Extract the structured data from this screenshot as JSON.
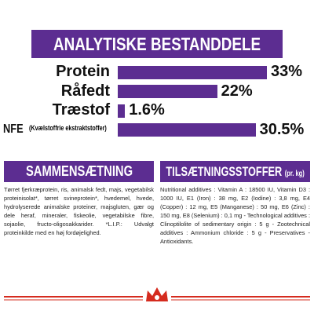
{
  "chart_data": {
    "type": "bar",
    "orientation": "horizontal",
    "title": "ANALYTISKE BESTANDDELE",
    "categories": [
      "Protein",
      "Råfedt",
      "Træstof",
      "NFE"
    ],
    "values": [
      33,
      22,
      1.6,
      30.5
    ],
    "value_labels": [
      "33%",
      "22%",
      "1.6%",
      "30.5%"
    ],
    "color": "#5c2d91"
  },
  "nfe_note": "(Kvælstoffrie ekstraktstoffer)",
  "composition": {
    "title": "SAMMENSÆTNING",
    "text": "Tørret fjerkræprotein, ris, animalsk fedt, majs, vegetabilsk proteinisolat*, tørret svineprotein*, hvedemel, hvede, hydrolyserede animalske proteiner, majsgluten, gær og dele heraf, mineraler, fiskeolie, vegetabilske fibre, sojaolie, fructo-oligosakkarider. *L.I.P.: Udvalgt proteinkilde med en høj fordøjelighed."
  },
  "additives": {
    "title": "TILSÆTNINGSSTOFFER",
    "unit": "(pr. kg)",
    "text": "Nutritional additives : Vitamin A : 18500 IU, Vitamin D3 : 1000 IU, E1 (Iron) : 38 mg, E2 (Iodine) : 3,8 mg, E4 (Copper) : 12 mg, E5 (Manganese) : 50 mg, E6 (Zinc) : 150 mg, E8 (Selenium) : 0,1 mg - Technological additives : Clinoptilolite of sedimentary origin : 5 g - Zootechnical additives : Ammonium chloride : 5 g - Preservatives - Antioxidants."
  }
}
